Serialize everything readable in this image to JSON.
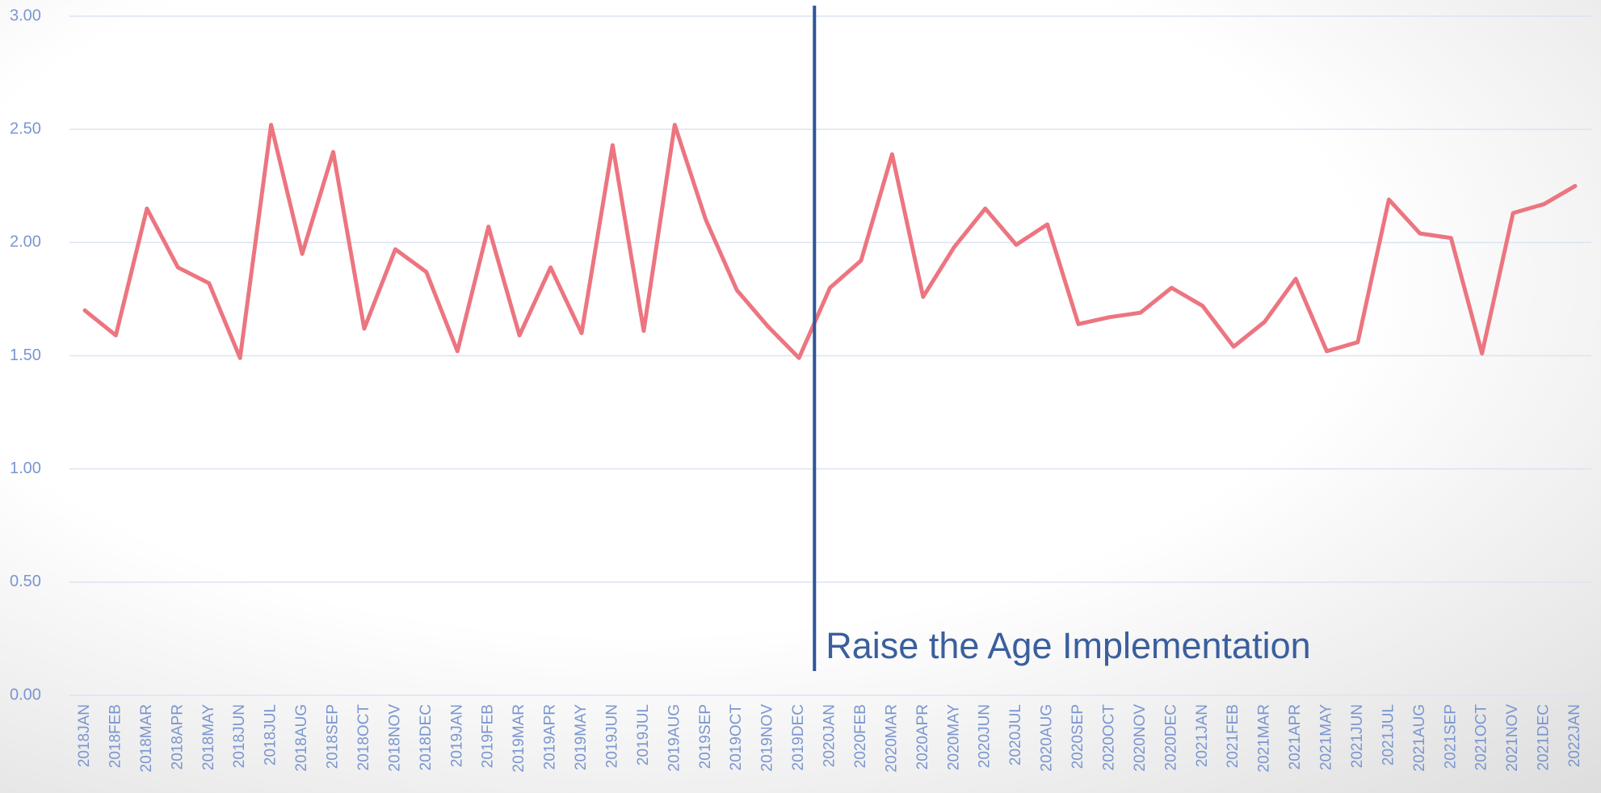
{
  "chart_data": {
    "type": "line",
    "categories": [
      "2018JAN",
      "2018FEB",
      "2018MAR",
      "2018APR",
      "2018MAY",
      "2018JUN",
      "2018JUL",
      "2018AUG",
      "2018SEP",
      "2018OCT",
      "2018NOV",
      "2018DEC",
      "2019JAN",
      "2019FEB",
      "2019MAR",
      "2019APR",
      "2019MAY",
      "2019JUN",
      "2019JUL",
      "2019AUG",
      "2019SEP",
      "2019OCT",
      "2019NOV",
      "2019DEC",
      "2020JAN",
      "2020FEB",
      "2020MAR",
      "2020APR",
      "2020MAY",
      "2020JUN",
      "2020JUL",
      "2020AUG",
      "2020SEP",
      "2020OCT",
      "2020NOV",
      "2020DEC",
      "2021JAN",
      "2021FEB",
      "2021MAR",
      "2021APR",
      "2021MAY",
      "2021JUN",
      "2021JUL",
      "2021AUG",
      "2021SEP",
      "2021OCT",
      "2021NOV",
      "2021DEC",
      "2022JAN"
    ],
    "values": [
      1.7,
      1.59,
      2.15,
      1.89,
      1.82,
      1.49,
      2.52,
      1.95,
      2.4,
      1.62,
      1.97,
      1.87,
      1.52,
      2.07,
      1.59,
      1.89,
      1.6,
      2.43,
      1.61,
      2.52,
      2.1,
      1.79,
      1.63,
      1.49,
      1.8,
      1.92,
      2.39,
      1.76,
      1.98,
      2.15,
      1.99,
      2.08,
      1.64,
      1.67,
      1.69,
      1.8,
      1.72,
      1.54,
      1.65,
      1.84,
      1.52,
      1.56,
      2.19,
      2.04,
      2.02,
      1.51,
      2.13,
      2.17,
      2.25
    ],
    "color": "#ec7580",
    "ylim": [
      0,
      3
    ],
    "yticks": [
      {
        "value": 0,
        "label": "0.00"
      },
      {
        "value": 0.5,
        "label": "0.50"
      },
      {
        "value": 1,
        "label": "1.00"
      },
      {
        "value": 1.5,
        "label": "1.50"
      },
      {
        "value": 2,
        "label": "2.00"
      },
      {
        "value": 2.5,
        "label": "2.50"
      },
      {
        "value": 3,
        "label": "3.00"
      }
    ],
    "grid": true,
    "annotation": "Raise the Age Implementation"
  }
}
